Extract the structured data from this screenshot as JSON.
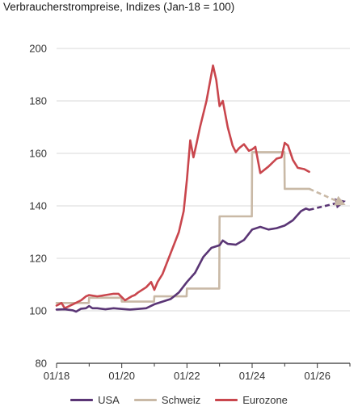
{
  "chart_data": {
    "type": "line",
    "title": "Verbraucherstrompreise, Indizes (Jan-18 = 100)",
    "xlabel": "",
    "ylabel": "",
    "ylim": [
      80,
      200
    ],
    "yticks": [
      80,
      100,
      120,
      140,
      160,
      180,
      200
    ],
    "xlim": [
      2018.0,
      2027.0
    ],
    "xticks": [
      {
        "value": 2018.0,
        "label": "01/18"
      },
      {
        "value": 2020.0,
        "label": "01/20"
      },
      {
        "value": 2022.0,
        "label": "01/22"
      },
      {
        "value": 2024.0,
        "label": "01/24"
      },
      {
        "value": 2026.0,
        "label": "01/26"
      }
    ],
    "grid": "horizontal",
    "legend_position": "bottom",
    "series": [
      {
        "name": "USA",
        "color": "#5a3575",
        "x": [
          2018.0,
          2018.25,
          2018.5,
          2018.6,
          2018.75,
          2018.9,
          2019.0,
          2019.1,
          2019.25,
          2019.5,
          2019.75,
          2020.0,
          2020.25,
          2020.5,
          2020.75,
          2021.0,
          2021.25,
          2021.5,
          2021.75,
          2022.0,
          2022.25,
          2022.5,
          2022.75,
          2023.0,
          2023.1,
          2023.25,
          2023.5,
          2023.75,
          2024.0,
          2024.25,
          2024.5,
          2024.75,
          2025.0,
          2025.25,
          2025.5,
          2025.65,
          2025.75
        ],
        "values": [
          100.5,
          100.6,
          100.2,
          99.7,
          100.8,
          101.0,
          101.8,
          101.0,
          101.0,
          100.6,
          101.0,
          100.7,
          100.5,
          100.7,
          101.0,
          102.5,
          103.5,
          104.5,
          107.0,
          111.0,
          114.5,
          120.5,
          124.0,
          125.0,
          126.8,
          125.5,
          125.2,
          127.0,
          131.0,
          132.0,
          131.0,
          131.5,
          132.5,
          134.5,
          138.0,
          139.0,
          138.5
        ]
      },
      {
        "name": "Schweiz",
        "color": "#c9b9a6",
        "x": [
          2018.0,
          2018.99,
          2019.0,
          2019.99,
          2020.0,
          2020.99,
          2021.0,
          2021.99,
          2022.0,
          2022.99,
          2023.0,
          2023.99,
          2024.0,
          2024.99,
          2025.0,
          2025.75
        ],
        "values": [
          103.0,
          103.0,
          105.0,
          105.0,
          103.5,
          103.5,
          105.5,
          105.5,
          108.5,
          108.5,
          136.0,
          136.0,
          160.5,
          160.5,
          146.5,
          146.5
        ]
      },
      {
        "name": "Eurozone",
        "color": "#c9464d",
        "x": [
          2018.0,
          2018.15,
          2018.25,
          2018.5,
          2018.75,
          2018.9,
          2019.0,
          2019.25,
          2019.5,
          2019.75,
          2019.9,
          2020.1,
          2020.3,
          2020.4,
          2020.5,
          2020.75,
          2020.9,
          2021.0,
          2021.1,
          2021.25,
          2021.5,
          2021.75,
          2021.9,
          2022.0,
          2022.1,
          2022.2,
          2022.3,
          2022.4,
          2022.6,
          2022.8,
          2022.9,
          2023.0,
          2023.1,
          2023.25,
          2023.4,
          2023.5,
          2023.6,
          2023.75,
          2023.9,
          2024.0,
          2024.1,
          2024.25,
          2024.5,
          2024.75,
          2024.9,
          2025.0,
          2025.1,
          2025.25,
          2025.4,
          2025.6,
          2025.75
        ],
        "values": [
          102.0,
          103.0,
          101.0,
          102.5,
          104.0,
          105.5,
          106.0,
          105.5,
          106.0,
          106.5,
          106.5,
          104.0,
          105.5,
          106.0,
          107.0,
          109.0,
          111.0,
          108.0,
          111.0,
          114.0,
          122.0,
          130.0,
          138.0,
          150.0,
          165.0,
          158.5,
          164.0,
          170.0,
          180.0,
          193.5,
          188.0,
          178.0,
          180.0,
          170.0,
          163.0,
          160.5,
          162.0,
          163.5,
          161.0,
          161.5,
          162.5,
          152.5,
          155.0,
          158.0,
          158.5,
          164.0,
          163.0,
          157.5,
          154.5,
          154.0,
          153.0
        ]
      }
    ],
    "projections": [
      {
        "name": "USA",
        "color": "#5a3575",
        "x": [
          2025.75,
          2026.75
        ],
        "values": [
          138.5,
          141.5
        ]
      },
      {
        "name": "Schweiz",
        "color": "#c9b9a6",
        "x": [
          2025.75,
          2026.75
        ],
        "values": [
          146.5,
          141.0
        ]
      }
    ]
  }
}
